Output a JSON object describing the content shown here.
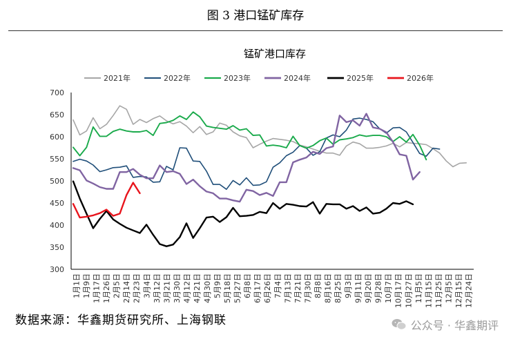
{
  "figure_title": "图 3  港口锰矿库存",
  "source": "数据来源：华鑫期货研究所、上海钢联",
  "watermark": "公众号 · 华鑫期评",
  "watermark_icon": "wechat-icon",
  "chart_data": {
    "type": "line",
    "title": "锰矿港口库存",
    "xlabel": "",
    "ylabel": "",
    "ylim": [
      300,
      700
    ],
    "yticks": [
      300,
      350,
      400,
      450,
      500,
      550,
      600,
      650,
      700
    ],
    "grid": false,
    "legend": "top",
    "xtick_labels": [
      "1月1日",
      "1月9日",
      "1月17日",
      "1月26日",
      "2月5日",
      "2月14日",
      "2月23日",
      "3月4日",
      "3月12日",
      "3月21日",
      "3月30日",
      "4月12日",
      "4月21日",
      "4月30日",
      "5月9日",
      "5月18日",
      "5月27日",
      "6月8日",
      "6月17日",
      "6月26日",
      "7月4日",
      "7月13日",
      "7月21日",
      "7月30日",
      "8月8日",
      "8月16日",
      "8月25日",
      "9月3日",
      "9月11日",
      "9月20日",
      "9月28日",
      "10月7日",
      "10月17日",
      "10月27日",
      "11月5日",
      "11月15日",
      "11月25日",
      "12月5日",
      "12月15日",
      "12月24日"
    ],
    "series": [
      {
        "name": "2021年",
        "color": "#a6a6a6",
        "width": 1.6,
        "values": [
          638,
          604,
          613,
          643,
          618,
          628,
          648,
          670,
          662,
          628,
          639,
          632,
          641,
          647,
          636,
          629,
          634,
          624,
          609,
          623,
          605,
          611,
          631,
          626,
          611,
          602,
          598,
          575,
          583,
          590,
          596,
          594,
          592,
          589,
          581,
          577,
          572,
          567,
          563,
          563,
          558,
          579,
          588,
          584,
          574,
          574,
          576,
          579,
          585,
          577,
          587,
          585,
          584,
          582,
          573,
          563,
          545,
          532,
          540,
          541
        ]
      },
      {
        "name": "2022年",
        "color": "#1f4e79",
        "width": 1.6,
        "values": [
          544,
          549,
          545,
          536,
          521,
          525,
          530,
          531,
          534,
          508,
          510,
          509,
          497,
          498,
          533,
          525,
          575,
          574,
          545,
          544,
          522,
          492,
          492,
          481,
          501,
          491,
          507,
          490,
          491,
          498,
          531,
          541,
          557,
          565,
          580,
          574,
          558,
          566,
          597,
          604,
          600,
          615,
          640,
          642,
          639,
          634,
          618,
          608,
          620,
          621,
          611,
          587,
          562,
          556,
          574,
          572
        ]
      },
      {
        "name": "2023年",
        "color": "#1aaa4b",
        "width": 1.9,
        "values": [
          576,
          557,
          576,
          622,
          601,
          601,
          612,
          617,
          613,
          611,
          611,
          614,
          603,
          630,
          632,
          637,
          647,
          639,
          656,
          645,
          624,
          621,
          619,
          617,
          625,
          615,
          618,
          603,
          604,
          579,
          581,
          579,
          575,
          601,
          580,
          574,
          580,
          591,
          597,
          583,
          593,
          595,
          598,
          604,
          601,
          603,
          603,
          600,
          589,
          600,
          588,
          605,
          581,
          548
        ]
      },
      {
        "name": "2024年",
        "color": "#8064a2",
        "width": 2.4,
        "values": [
          529,
          524,
          501,
          494,
          486,
          482,
          482,
          520,
          520,
          527,
          514,
          506,
          506,
          535,
          520,
          522,
          516,
          493,
          503,
          488,
          476,
          472,
          460,
          460,
          456,
          453,
          480,
          477,
          468,
          473,
          466,
          497,
          497,
          542,
          548,
          553,
          566,
          561,
          574,
          578,
          648,
          633,
          637,
          625,
          652,
          621,
          618,
          610,
          588,
          560,
          557,
          503,
          520
        ]
      },
      {
        "name": "2025年",
        "color": "#000000",
        "width": 2.4,
        "values": [
          499,
          460,
          426,
          393,
          414,
          432,
          413,
          403,
          394,
          388,
          382,
          401,
          378,
          357,
          352,
          356,
          373,
          404,
          371,
          393,
          417,
          419,
          407,
          418,
          439,
          420,
          421,
          423,
          430,
          427,
          450,
          437,
          448,
          446,
          443,
          442,
          452,
          426,
          448,
          447,
          447,
          437,
          443,
          432,
          440,
          426,
          428,
          437,
          450,
          448,
          454,
          447
        ]
      },
      {
        "name": "2026年",
        "color": "#e8141c",
        "width": 2.4,
        "values": [
          448,
          417,
          419,
          422,
          427,
          435,
          421,
          426,
          468,
          496,
          472
        ]
      }
    ]
  }
}
